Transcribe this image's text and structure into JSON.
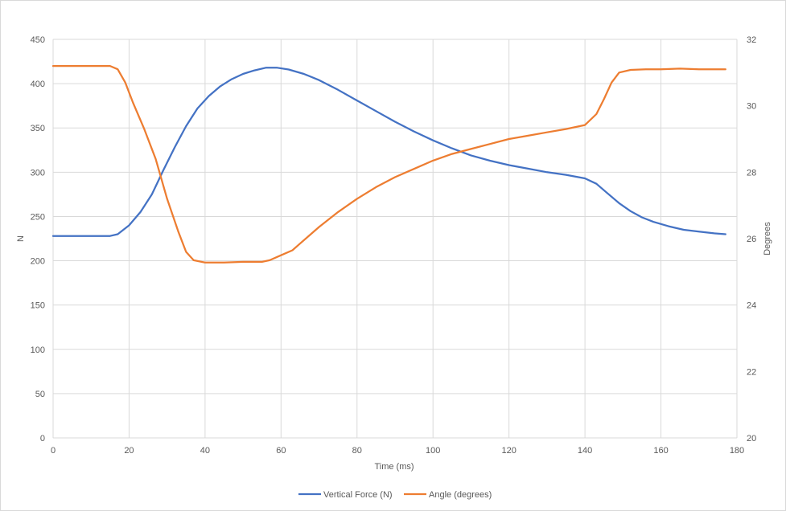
{
  "chart_data": {
    "type": "line",
    "title": "",
    "xlabel": "Time (ms)",
    "ylabel_left": "N",
    "ylabel_right": "Degrees",
    "xlim": [
      0,
      180
    ],
    "ylim_left": [
      0,
      450
    ],
    "ylim_right": [
      20,
      32
    ],
    "x_ticks": [
      "0",
      "20",
      "40",
      "60",
      "80",
      "100",
      "120",
      "140",
      "160",
      "180"
    ],
    "y_left_ticks": [
      "0",
      "50",
      "100",
      "150",
      "200",
      "250",
      "300",
      "350",
      "400",
      "450"
    ],
    "y_right_ticks": [
      "20",
      "22",
      "24",
      "26",
      "28",
      "30",
      "32"
    ],
    "grid": true,
    "legend_position": "bottom",
    "series": [
      {
        "name": "Vertical Force (N)",
        "axis": "left",
        "color": "#4472C4",
        "points": [
          [
            0,
            228
          ],
          [
            5,
            228
          ],
          [
            10,
            228
          ],
          [
            15,
            228
          ],
          [
            17,
            230
          ],
          [
            20,
            240
          ],
          [
            23,
            255
          ],
          [
            26,
            275
          ],
          [
            29,
            302
          ],
          [
            32,
            328
          ],
          [
            35,
            352
          ],
          [
            38,
            372
          ],
          [
            41,
            386
          ],
          [
            44,
            397
          ],
          [
            47,
            405
          ],
          [
            50,
            411
          ],
          [
            53,
            415
          ],
          [
            56,
            418
          ],
          [
            59,
            418
          ],
          [
            62,
            416
          ],
          [
            66,
            411
          ],
          [
            70,
            404
          ],
          [
            75,
            393
          ],
          [
            80,
            381
          ],
          [
            85,
            369
          ],
          [
            90,
            357
          ],
          [
            95,
            346
          ],
          [
            100,
            336
          ],
          [
            105,
            327
          ],
          [
            110,
            319
          ],
          [
            115,
            313
          ],
          [
            120,
            308
          ],
          [
            125,
            304
          ],
          [
            130,
            300
          ],
          [
            135,
            297
          ],
          [
            140,
            293
          ],
          [
            143,
            287
          ],
          [
            146,
            276
          ],
          [
            149,
            265
          ],
          [
            152,
            256
          ],
          [
            155,
            249
          ],
          [
            158,
            244
          ],
          [
            162,
            239
          ],
          [
            166,
            235
          ],
          [
            170,
            233
          ],
          [
            174,
            231
          ],
          [
            177,
            230
          ]
        ]
      },
      {
        "name": "Angle (degrees)",
        "axis": "right",
        "color": "#ED7D31",
        "points": [
          [
            0,
            31.2
          ],
          [
            5,
            31.2
          ],
          [
            10,
            31.2
          ],
          [
            15,
            31.2
          ],
          [
            17,
            31.1
          ],
          [
            19,
            30.7
          ],
          [
            21,
            30.1
          ],
          [
            24,
            29.3
          ],
          [
            27,
            28.4
          ],
          [
            30,
            27.2
          ],
          [
            33,
            26.2
          ],
          [
            35,
            25.6
          ],
          [
            37,
            25.35
          ],
          [
            40,
            25.28
          ],
          [
            45,
            25.28
          ],
          [
            50,
            25.3
          ],
          [
            55,
            25.3
          ],
          [
            57,
            25.35
          ],
          [
            60,
            25.5
          ],
          [
            63,
            25.65
          ],
          [
            65,
            25.85
          ],
          [
            70,
            26.35
          ],
          [
            75,
            26.8
          ],
          [
            80,
            27.2
          ],
          [
            85,
            27.55
          ],
          [
            90,
            27.85
          ],
          [
            95,
            28.1
          ],
          [
            100,
            28.35
          ],
          [
            105,
            28.55
          ],
          [
            110,
            28.7
          ],
          [
            115,
            28.85
          ],
          [
            120,
            29.0
          ],
          [
            125,
            29.1
          ],
          [
            130,
            29.2
          ],
          [
            135,
            29.3
          ],
          [
            140,
            29.42
          ],
          [
            143,
            29.75
          ],
          [
            145,
            30.2
          ],
          [
            147,
            30.7
          ],
          [
            149,
            31.0
          ],
          [
            152,
            31.08
          ],
          [
            156,
            31.1
          ],
          [
            160,
            31.1
          ],
          [
            165,
            31.12
          ],
          [
            170,
            31.1
          ],
          [
            177,
            31.1
          ]
        ]
      }
    ]
  }
}
